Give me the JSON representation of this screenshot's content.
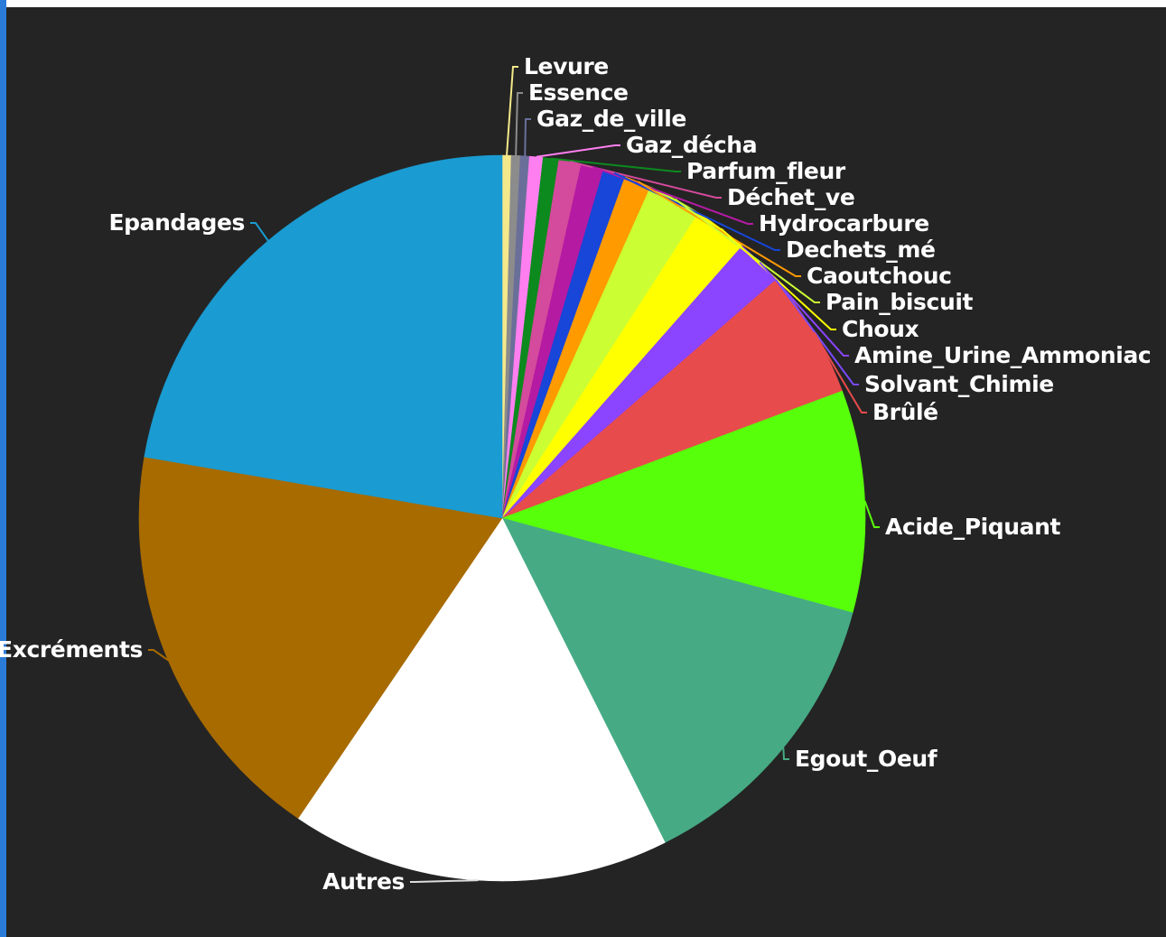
{
  "chart_data": {
    "type": "pie",
    "title": "",
    "legend": "none",
    "slices": [
      {
        "label": "Levure",
        "value": 0.4,
        "color": "#f4e88a"
      },
      {
        "label": "Essence",
        "value": 0.4,
        "color": "#8c8c8c"
      },
      {
        "label": "Gaz_de_ville",
        "value": 0.4,
        "color": "#6a6f9a"
      },
      {
        "label": "Gaz_décha",
        "value": 0.6,
        "color": "#ff7ff0"
      },
      {
        "label": "Parfum_fleur",
        "value": 0.7,
        "color": "#0c8a1e"
      },
      {
        "label": "Déchet_ve",
        "value": 1.0,
        "color": "#d44a9c"
      },
      {
        "label": "Hydrocarbure",
        "value": 1.0,
        "color": "#b51aa3"
      },
      {
        "label": "Dechets_mé",
        "value": 1.0,
        "color": "#1746d8"
      },
      {
        "label": "Caoutchouc",
        "value": 1.2,
        "color": "#ff9a00"
      },
      {
        "label": "Pain_biscuit",
        "value": 2.4,
        "color": "#ccff33"
      },
      {
        "label": "Choux",
        "value": 2.4,
        "color": "#ffff00"
      },
      {
        "label": "Amine_Urine_Ammoniac",
        "value": 2.1,
        "color": "#8b44ff"
      },
      {
        "label": "Solvant_Chimie",
        "value": 0.0,
        "color": "#7a49ff"
      },
      {
        "label": "Brûlé",
        "value": 5.7,
        "color": "#e84b4b"
      },
      {
        "label": "Acide_Piquant",
        "value": 9.9,
        "color": "#58ff0a"
      },
      {
        "label": "Egout_Oeuf",
        "value": 13.4,
        "color": "#46ab84"
      },
      {
        "label": "Autres",
        "value": 16.9,
        "color": "#ffffff"
      },
      {
        "label": "Excréments",
        "value": 18.2,
        "color": "#a86b00"
      },
      {
        "label": "Epandages",
        "value": 22.3,
        "color": "#1a9bd1"
      }
    ]
  }
}
